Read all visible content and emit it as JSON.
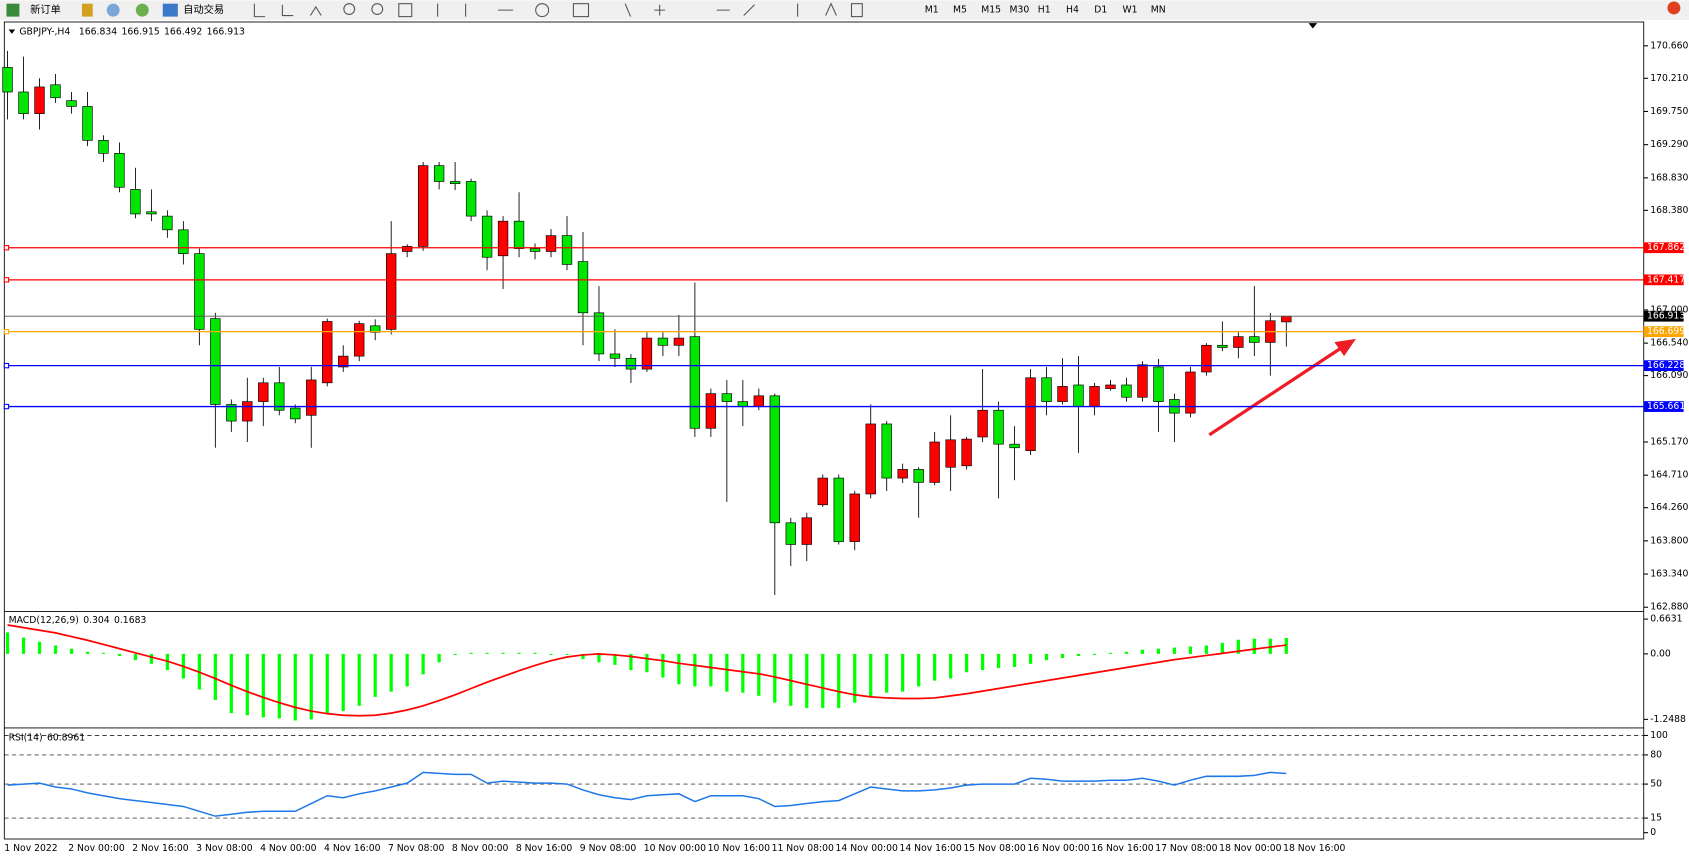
{
  "toolbar": {
    "new_order": "新订单",
    "auto_trading": "自动交易",
    "timeframes": [
      "M1",
      "M5",
      "M15",
      "M30",
      "H1",
      "H4",
      "D1",
      "W1",
      "MN"
    ]
  },
  "chart_data": {
    "type": "candlestick",
    "title": "GBPJPY-,H4",
    "categories": [
      "1 Nov 2022",
      null,
      null,
      null,
      "2 Nov 00:00",
      null,
      null,
      null,
      "2 Nov 16:00",
      null,
      null,
      null,
      "3 Nov 08:00",
      null,
      null,
      null,
      "4 Nov 00:00",
      null,
      null,
      null,
      "4 Nov 16:00",
      null,
      null,
      null,
      "7 Nov 08:00",
      null,
      null,
      null,
      "8 Nov 00:00",
      null,
      null,
      null,
      "8 Nov 16:00",
      null,
      null,
      null,
      "9 Nov 08:00",
      null,
      null,
      null,
      "10 Nov 00:00",
      null,
      null,
      null,
      "10 Nov 16:00",
      null,
      null,
      null,
      "11 Nov 08:00",
      null,
      null,
      null,
      "14 Nov 00:00",
      null,
      null,
      null,
      "14 Nov 16:00",
      null,
      null,
      null,
      "15 Nov 08:00",
      null,
      null,
      null,
      "16 Nov 00:00",
      null,
      null,
      null,
      "16 Nov 16:00",
      null,
      null,
      null,
      "17 Nov 08:00",
      null,
      null,
      null,
      "18 Nov 00:00",
      null,
      null,
      null,
      "18 Nov 16:00"
    ],
    "open": [
      170.36,
      170.02,
      169.72,
      170.12,
      169.9,
      169.82,
      169.35,
      169.17,
      168.67,
      168.36,
      168.3,
      168.11,
      167.78,
      166.88,
      165.69,
      165.46,
      165.73,
      165.99,
      165.64,
      165.54,
      165.99,
      166.21,
      166.36,
      166.78,
      166.73,
      167.81,
      167.88,
      169.0,
      168.78,
      168.78,
      168.3,
      167.75,
      168.23,
      167.85,
      167.81,
      168.03,
      167.67,
      166.96,
      166.39,
      166.33,
      166.18,
      166.61,
      166.51,
      166.63,
      165.36,
      165.84,
      165.73,
      165.66,
      165.81,
      164.05,
      163.75,
      164.3,
      164.67,
      163.79,
      164.45,
      165.42,
      164.67,
      164.79,
      164.61,
      164.82,
      164.84,
      165.24,
      165.61,
      165.14,
      165.05,
      166.06,
      165.73,
      165.96,
      165.66,
      165.91,
      165.96,
      165.79,
      166.21,
      165.76,
      165.57,
      166.14,
      166.51,
      166.48,
      166.63,
      166.55,
      166.834
    ],
    "high": [
      170.59,
      170.51,
      170.21,
      170.27,
      170.02,
      170.02,
      169.42,
      169.32,
      168.97,
      168.67,
      168.38,
      168.23,
      167.85,
      166.96,
      165.76,
      166.06,
      166.06,
      166.21,
      165.69,
      166.21,
      166.88,
      166.51,
      166.85,
      166.87,
      168.23,
      167.91,
      169.05,
      169.05,
      169.05,
      168.82,
      168.38,
      168.3,
      168.63,
      167.92,
      168.12,
      168.3,
      168.08,
      167.33,
      166.73,
      166.39,
      166.69,
      166.69,
      166.93,
      167.38,
      165.91,
      166.03,
      166.03,
      165.91,
      165.84,
      164.12,
      164.19,
      164.72,
      164.72,
      164.49,
      165.69,
      165.46,
      164.87,
      164.82,
      165.31,
      165.54,
      165.24,
      166.18,
      165.73,
      165.39,
      166.18,
      166.21,
      166.33,
      166.36,
      165.99,
      166.03,
      166.06,
      166.29,
      166.32,
      165.84,
      166.21,
      166.54,
      166.84,
      166.69,
      167.33,
      166.96,
      166.915
    ],
    "low": [
      169.64,
      169.64,
      169.5,
      169.87,
      169.72,
      169.27,
      169.05,
      168.63,
      168.27,
      168.23,
      168.0,
      167.63,
      166.51,
      165.09,
      165.31,
      165.17,
      165.39,
      165.54,
      165.43,
      165.09,
      165.94,
      166.14,
      166.29,
      166.58,
      166.66,
      167.73,
      167.82,
      168.67,
      168.66,
      168.23,
      167.55,
      167.29,
      167.73,
      167.7,
      167.73,
      167.55,
      166.51,
      166.29,
      166.21,
      165.99,
      166.14,
      166.36,
      166.36,
      165.24,
      165.24,
      164.34,
      165.39,
      165.61,
      163.05,
      163.45,
      163.52,
      164.27,
      163.75,
      163.67,
      164.39,
      164.49,
      164.6,
      164.12,
      164.57,
      164.49,
      164.79,
      165.17,
      164.39,
      164.64,
      164.99,
      165.54,
      165.69,
      165.02,
      165.54,
      165.88,
      165.73,
      165.73,
      165.31,
      165.17,
      165.51,
      166.09,
      166.43,
      166.33,
      166.36,
      166.09,
      166.492
    ],
    "close": [
      170.02,
      169.72,
      170.09,
      169.94,
      169.82,
      169.35,
      169.17,
      168.7,
      168.33,
      168.33,
      168.11,
      167.78,
      166.73,
      165.69,
      165.46,
      165.73,
      165.99,
      165.61,
      165.49,
      166.03,
      166.84,
      166.36,
      166.81,
      166.69,
      167.78,
      167.88,
      169.0,
      168.78,
      168.75,
      168.3,
      167.73,
      168.23,
      167.85,
      167.81,
      168.03,
      167.63,
      166.96,
      166.39,
      166.33,
      166.18,
      166.61,
      166.51,
      166.61,
      165.36,
      165.84,
      165.73,
      165.66,
      165.81,
      164.05,
      163.75,
      164.12,
      164.67,
      163.79,
      164.45,
      165.42,
      164.67,
      164.79,
      164.61,
      165.17,
      165.2,
      165.21,
      165.61,
      165.14,
      165.09,
      166.06,
      165.73,
      165.94,
      165.66,
      165.94,
      165.96,
      165.79,
      166.24,
      165.73,
      165.57,
      166.14,
      166.51,
      166.48,
      166.63,
      166.55,
      166.85,
      166.913
    ],
    "up_color": "#ff0000",
    "down_color": "#00e600",
    "ylim": [
      162.835,
      170.99
    ],
    "yticks": [
      {
        "value": 170.66,
        "label": "170.660"
      },
      {
        "value": 170.21,
        "label": "170.210"
      },
      {
        "value": 169.75,
        "label": "169.750"
      },
      {
        "value": 169.29,
        "label": "169.290"
      },
      {
        "value": 168.83,
        "label": "168.830"
      },
      {
        "value": 168.38,
        "label": "168.380"
      },
      {
        "value": 167,
        "label": "167.000"
      },
      {
        "value": 166.54,
        "label": "166.540"
      },
      {
        "value": 166.09,
        "label": "166.090"
      },
      {
        "value": 165.17,
        "label": "165.170"
      },
      {
        "value": 164.71,
        "label": "164.710"
      },
      {
        "value": 164.26,
        "label": "164.260"
      },
      {
        "value": 163.8,
        "label": "163.800"
      },
      {
        "value": 163.34,
        "label": "163.340"
      },
      {
        "value": 162.88,
        "label": "162.880"
      }
    ],
    "levels": [
      {
        "value": 167.862,
        "color": "#ff0000"
      },
      {
        "value": 167.417,
        "color": "#ff0000"
      },
      {
        "value": 166.699,
        "color": "#ffa500"
      },
      {
        "value": 166.228,
        "color": "#0000ff"
      },
      {
        "value": 165.661,
        "color": "#0000ff"
      }
    ],
    "macd": {
      "name": "MACD(12,26,9)",
      "hist_color": "#00ff00",
      "signal_color": "#ff0000",
      "histogram": [
        0.41,
        0.31,
        0.23,
        0.16,
        0.1,
        0.04,
        0.02,
        -0.04,
        -0.12,
        -0.19,
        -0.31,
        -0.47,
        -0.68,
        -0.88,
        -1.13,
        -1.17,
        -1.21,
        -1.23,
        -1.27,
        -1.25,
        -1.15,
        -1.09,
        -0.99,
        -0.82,
        -0.72,
        -0.62,
        -0.39,
        -0.16,
        -0.02,
        0.02,
        0.02,
        0.02,
        0.02,
        0.02,
        -0.02,
        -0.02,
        -0.1,
        -0.16,
        -0.21,
        -0.31,
        -0.35,
        -0.45,
        -0.58,
        -0.62,
        -0.62,
        -0.72,
        -0.74,
        -0.8,
        -0.93,
        -0.99,
        -1.03,
        -1.03,
        -1.03,
        -0.93,
        -0.82,
        -0.74,
        -0.72,
        -0.62,
        -0.51,
        -0.47,
        -0.35,
        -0.31,
        -0.27,
        -0.25,
        -0.19,
        -0.12,
        -0.08,
        -0.04,
        -0.02,
        0.02,
        0.04,
        0.08,
        0.1,
        0.12,
        0.14,
        0.16,
        0.21,
        0.27,
        0.29,
        0.29,
        0.304
      ],
      "signal": [
        0.55,
        0.5,
        0.45,
        0.4,
        0.33,
        0.26,
        0.18,
        0.1,
        0.02,
        -0.06,
        -0.14,
        -0.24,
        -0.35,
        -0.47,
        -0.6,
        -0.72,
        -0.83,
        -0.93,
        -1.02,
        -1.09,
        -1.14,
        -1.17,
        -1.18,
        -1.17,
        -1.13,
        -1.07,
        -0.99,
        -0.89,
        -0.78,
        -0.66,
        -0.54,
        -0.43,
        -0.32,
        -0.22,
        -0.13,
        -0.06,
        -0.02,
        0.0,
        -0.02,
        -0.05,
        -0.09,
        -0.13,
        -0.18,
        -0.22,
        -0.26,
        -0.3,
        -0.34,
        -0.38,
        -0.44,
        -0.51,
        -0.58,
        -0.65,
        -0.72,
        -0.78,
        -0.82,
        -0.84,
        -0.85,
        -0.85,
        -0.84,
        -0.8,
        -0.76,
        -0.71,
        -0.66,
        -0.61,
        -0.56,
        -0.51,
        -0.46,
        -0.41,
        -0.36,
        -0.31,
        -0.26,
        -0.21,
        -0.16,
        -0.11,
        -0.07,
        -0.03,
        0.01,
        0.05,
        0.09,
        0.13,
        0.1683
      ],
      "ylim": [
        -1.372,
        0.786
      ],
      "yticks": [
        0.6631,
        {
          "value": 0,
          "label": "0.00"
        },
        -1.2488
      ]
    },
    "rsi": {
      "name": "RSI(14)",
      "color": "#1e78e6",
      "values": [
        49,
        50,
        51,
        47,
        45,
        41,
        38,
        35,
        33,
        31,
        29,
        27,
        22,
        17,
        19,
        21,
        22,
        22,
        22,
        30,
        38,
        36,
        40,
        43,
        47,
        51,
        62,
        61,
        60,
        60,
        51,
        53,
        52,
        51,
        51,
        50,
        44,
        39,
        36,
        34,
        38,
        39,
        40,
        32,
        38,
        38,
        38,
        35,
        27,
        28,
        30,
        32,
        33,
        40,
        47,
        45,
        43,
        43,
        44,
        46,
        49,
        50,
        50,
        50,
        56,
        55,
        53,
        53,
        53,
        54,
        54,
        56,
        53,
        49,
        54,
        58,
        58,
        58,
        59,
        62,
        60.8961
      ],
      "ylim": [
        -6.5,
        105.5
      ],
      "yticks": [
        100,
        80,
        50,
        15,
        0
      ],
      "levels": [
        80,
        50,
        15
      ]
    }
  }
}
